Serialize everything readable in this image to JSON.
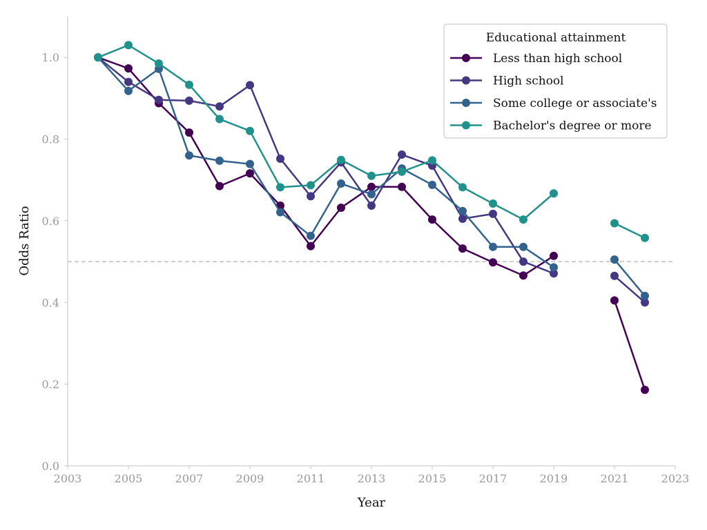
{
  "chart_data": {
    "type": "line",
    "xlabel": "Year",
    "ylabel": "Odds Ratio",
    "xlim": [
      2003,
      2023
    ],
    "ylim": [
      0,
      1.1
    ],
    "x_ticks": [
      "2003",
      "2005",
      "2007",
      "2009",
      "2011",
      "2013",
      "2015",
      "2017",
      "2019",
      "2021",
      "2023"
    ],
    "y_ticks": [
      "0.0",
      "0.2",
      "0.4",
      "0.6",
      "0.8",
      "1.0"
    ],
    "reference_line": {
      "y": 0.5,
      "style": "dashed",
      "color": "#bdbdbd"
    },
    "grid": false,
    "legend": {
      "title": "Educational attainment",
      "placement": "top-right"
    },
    "x": [
      2004,
      2005,
      2006,
      2007,
      2008,
      2009,
      2010,
      2011,
      2012,
      2013,
      2014,
      2015,
      2016,
      2017,
      2018,
      2019,
      2021,
      2022
    ],
    "series": [
      {
        "name": "Less than high school",
        "color": "#440154",
        "values": [
          1.0,
          0.973,
          0.888,
          0.816,
          0.685,
          0.716,
          0.637,
          0.538,
          0.632,
          0.683,
          0.683,
          0.603,
          0.532,
          0.498,
          0.466,
          0.514,
          0.405,
          0.186
        ]
      },
      {
        "name": "High school",
        "color": "#453781",
        "values": [
          1.0,
          0.94,
          0.896,
          0.894,
          0.88,
          0.932,
          0.752,
          0.66,
          0.743,
          0.637,
          0.762,
          0.735,
          0.605,
          0.617,
          0.5,
          0.471,
          0.465,
          0.4
        ]
      },
      {
        "name": "Some college or associate's",
        "color": "#33638d",
        "values": [
          1.0,
          0.918,
          0.972,
          0.76,
          0.747,
          0.739,
          0.621,
          0.563,
          0.691,
          0.665,
          0.728,
          0.688,
          0.624,
          0.536,
          0.536,
          0.486,
          0.505,
          0.416
        ]
      },
      {
        "name": "Bachelor's degree or more",
        "color": "#21918c",
        "values": [
          1.0,
          1.03,
          0.985,
          0.933,
          0.849,
          0.82,
          0.682,
          0.687,
          0.749,
          0.71,
          0.72,
          0.748,
          0.682,
          0.642,
          0.603,
          0.667,
          0.594,
          0.558
        ]
      }
    ]
  }
}
